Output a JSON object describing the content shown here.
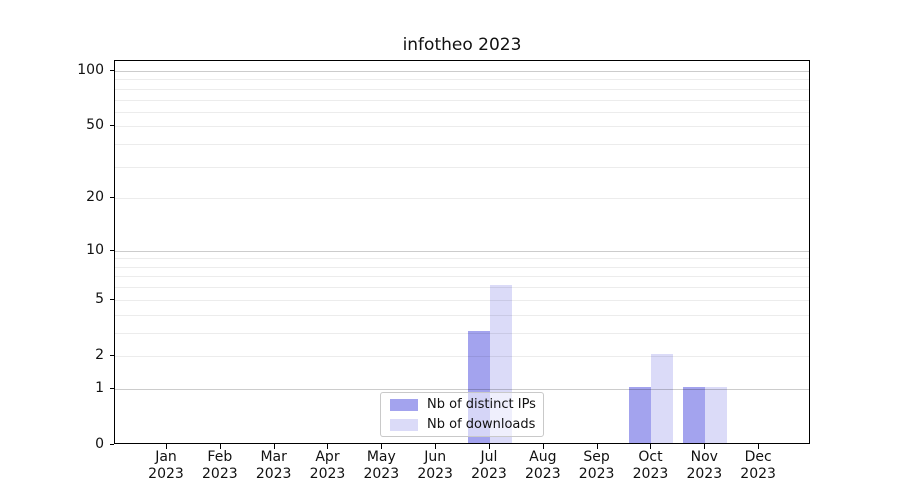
{
  "chart_data": {
    "type": "bar",
    "title": "infotheo 2023",
    "categories": [
      "Jan",
      "Feb",
      "Mar",
      "Apr",
      "May",
      "Jun",
      "Jul",
      "Aug",
      "Sep",
      "Oct",
      "Nov",
      "Dec"
    ],
    "year_label": "2023",
    "series": [
      {
        "name": "Nb of distinct IPs",
        "color": "#a3a3ee",
        "values": [
          0,
          0,
          0,
          0,
          0,
          0,
          3,
          0,
          0,
          1,
          1,
          0
        ]
      },
      {
        "name": "Nb of downloads",
        "color": "#dbdbf8",
        "values": [
          0,
          0,
          0,
          0,
          0,
          0,
          6,
          0,
          0,
          2,
          1,
          0
        ]
      }
    ],
    "yscale": "log1p",
    "ylim": [
      0,
      113
    ],
    "ytick_labels": [
      0,
      1,
      2,
      5,
      10,
      20,
      50,
      100
    ],
    "major_gridlines": [
      1,
      10,
      100
    ],
    "minor_gridlines": [
      2,
      3,
      4,
      5,
      6,
      7,
      8,
      9,
      20,
      30,
      40,
      50,
      60,
      70,
      80,
      90
    ],
    "grid": true,
    "legend": {
      "position": "bottom-center",
      "items": [
        "Nb of distinct IPs",
        "Nb of downloads"
      ]
    }
  }
}
